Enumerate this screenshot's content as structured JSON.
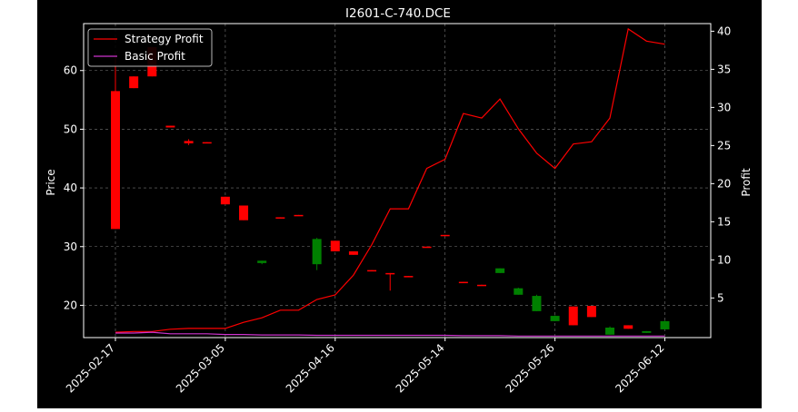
{
  "chart_data": {
    "type": "candlestick+line",
    "title": "I2601-C-740.DCE",
    "xlabel": "",
    "ylabel": "Price",
    "y2label": "Profit",
    "grid": true,
    "legend_position": "top-left",
    "x_ticks": [
      "2025-02-17",
      "2025-03-05",
      "2025-04-16",
      "2025-05-14",
      "2025-05-26",
      "2025-06-12"
    ],
    "x_tick_index": [
      0,
      6,
      12,
      18,
      24,
      30
    ],
    "y_ticks": [
      20,
      30,
      40,
      50,
      60
    ],
    "y_range": [
      14.5,
      68.0
    ],
    "y2_ticks": [
      5,
      10,
      15,
      20,
      25,
      30,
      35,
      40
    ],
    "y2_range": [
      -0.2,
      41.0
    ],
    "colors": {
      "up": "#008000",
      "down": "#ff0000",
      "strategy": "#ff0000",
      "basic": "#cc33cc"
    },
    "candles": [
      {
        "o": 56.5,
        "h": 63.0,
        "l": 33.0,
        "c": 33.0
      },
      {
        "o": 59.0,
        "h": 59.0,
        "l": 57.0,
        "c": 57.0
      },
      {
        "o": 64.0,
        "h": 64.0,
        "l": 59.0,
        "c": 59.0
      },
      {
        "o": 50.6,
        "h": 50.6,
        "l": 50.3,
        "c": 50.3
      },
      {
        "o": 48.0,
        "h": 48.3,
        "l": 47.3,
        "c": 47.6
      },
      {
        "o": 47.8,
        "h": 47.8,
        "l": 47.6,
        "c": 47.6
      },
      {
        "o": 38.5,
        "h": 38.5,
        "l": 37.2,
        "c": 37.2
      },
      {
        "o": 37.0,
        "h": 37.0,
        "l": 34.5,
        "c": 34.5
      },
      {
        "o": 27.2,
        "h": 27.6,
        "l": 27.0,
        "c": 27.6
      },
      {
        "o": 35.0,
        "h": 35.0,
        "l": 34.9,
        "c": 34.9
      },
      {
        "o": 35.4,
        "h": 35.4,
        "l": 35.3,
        "c": 35.3
      },
      {
        "o": 27.0,
        "h": 31.5,
        "l": 26.0,
        "c": 31.3
      },
      {
        "o": 31.0,
        "h": 31.0,
        "l": 29.2,
        "c": 29.2
      },
      {
        "o": 29.2,
        "h": 29.2,
        "l": 28.6,
        "c": 28.6
      },
      {
        "o": 26.0,
        "h": 26.0,
        "l": 25.9,
        "c": 25.9
      },
      {
        "o": 25.5,
        "h": 25.5,
        "l": 22.5,
        "c": 25.4
      },
      {
        "o": 25.0,
        "h": 25.0,
        "l": 24.9,
        "c": 24.9
      },
      {
        "o": 30.0,
        "h": 30.0,
        "l": 29.9,
        "c": 29.9
      },
      {
        "o": 32.0,
        "h": 32.0,
        "l": 31.9,
        "c": 31.9
      },
      {
        "o": 24.0,
        "h": 24.0,
        "l": 23.9,
        "c": 23.9
      },
      {
        "o": 23.5,
        "h": 23.5,
        "l": 23.4,
        "c": 23.4
      },
      {
        "o": 25.5,
        "h": 26.3,
        "l": 25.5,
        "c": 26.3
      },
      {
        "o": 21.8,
        "h": 23.0,
        "l": 21.8,
        "c": 22.9
      },
      {
        "o": 19.0,
        "h": 21.8,
        "l": 19.0,
        "c": 21.6
      },
      {
        "o": 17.3,
        "h": 18.3,
        "l": 17.3,
        "c": 18.2
      },
      {
        "o": 19.8,
        "h": 19.8,
        "l": 16.6,
        "c": 16.6
      },
      {
        "o": 19.9,
        "h": 19.9,
        "l": 18.0,
        "c": 18.0
      },
      {
        "o": 15.0,
        "h": 16.4,
        "l": 15.0,
        "c": 16.2
      },
      {
        "o": 16.6,
        "h": 16.6,
        "l": 16.0,
        "c": 16.0
      },
      {
        "o": 15.3,
        "h": 15.6,
        "l": 15.3,
        "c": 15.6
      },
      {
        "o": 15.9,
        "h": 17.4,
        "l": 15.9,
        "c": 17.3
      }
    ],
    "series": [
      {
        "name": "Strategy Profit",
        "values": [
          0.5,
          0.6,
          0.6,
          0.9,
          1.0,
          1.0,
          1.0,
          1.8,
          2.4,
          3.4,
          3.4,
          4.8,
          5.4,
          8.0,
          12.0,
          16.7,
          16.7,
          22.0,
          23.2,
          29.2,
          28.6,
          31.1,
          27.2,
          24.0,
          22.0,
          25.2,
          25.5,
          28.6,
          40.3,
          38.7,
          38.3
        ]
      },
      {
        "name": "Basic Profit",
        "values": [
          0.4,
          0.4,
          0.5,
          0.3,
          0.3,
          0.3,
          0.2,
          0.2,
          0.15,
          0.15,
          0.15,
          0.1,
          0.1,
          0.1,
          0.1,
          0.1,
          0.1,
          0.1,
          0.1,
          0.05,
          0.05,
          0.05,
          0.0,
          0.0,
          0.0,
          0.0,
          0.0,
          0.0,
          0.0,
          0.0,
          0.0
        ]
      }
    ]
  }
}
